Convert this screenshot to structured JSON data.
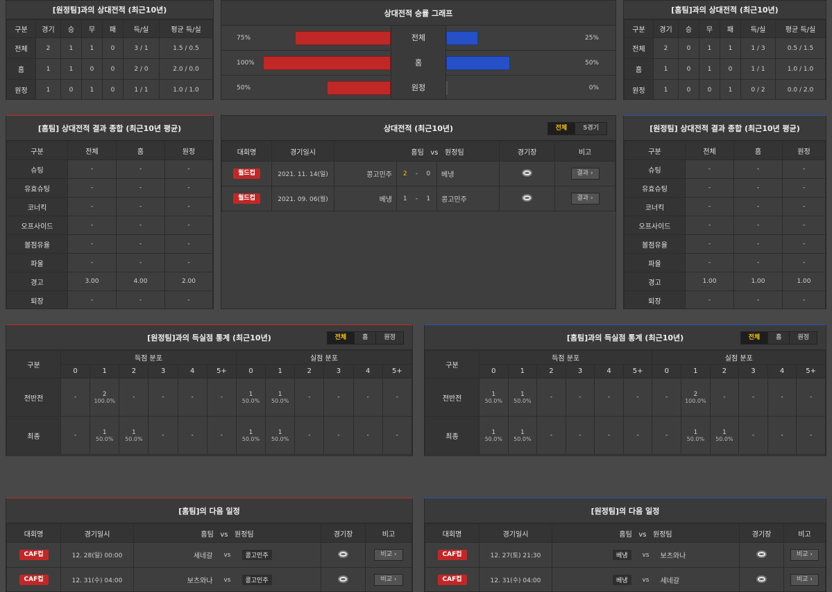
{
  "h2h_away": {
    "title": "[원정팀]과의 상대전적 (최근10년)",
    "headers": [
      "구분",
      "경기",
      "승",
      "무",
      "패",
      "득/실",
      "평균 득/실"
    ],
    "rows": [
      [
        "전체",
        "2",
        "1",
        "1",
        "0",
        "3 / 1",
        "1.5 / 0.5"
      ],
      [
        "홈",
        "1",
        "1",
        "0",
        "0",
        "2 / 0",
        "2.0 / 0.0"
      ],
      [
        "원정",
        "1",
        "0",
        "1",
        "0",
        "1 / 1",
        "1.0 / 1.0"
      ]
    ]
  },
  "h2h_home": {
    "title": "[홈팀]과의 상대전적 (최근10년)",
    "headers": [
      "구분",
      "경기",
      "승",
      "무",
      "패",
      "득/실",
      "평균 득/실"
    ],
    "rows": [
      [
        "전체",
        "2",
        "0",
        "1",
        "1",
        "1 / 3",
        "0.5 / 1.5"
      ],
      [
        "홈",
        "1",
        "0",
        "1",
        "0",
        "1 / 1",
        "1.0 / 1.0"
      ],
      [
        "원정",
        "1",
        "0",
        "0",
        "1",
        "0 / 2",
        "0.0 / 2.0"
      ]
    ]
  },
  "graph": {
    "title": "상대전적 승률 그래프",
    "rows": [
      {
        "label": "전체",
        "left_pct": "75%",
        "right_pct": "25%",
        "left": 75,
        "right": 25
      },
      {
        "label": "홈",
        "left_pct": "100%",
        "right_pct": "50%",
        "left": 100,
        "right": 50
      },
      {
        "label": "원정",
        "left_pct": "50%",
        "right_pct": "0%",
        "left": 50,
        "right": 0
      }
    ]
  },
  "summary_home": {
    "title": "[홈팀] 상대전적 결과 종합 (최근10년 평균)",
    "headers": [
      "구분",
      "전체",
      "홈",
      "원정"
    ],
    "rows": [
      [
        "슈팅",
        "-",
        "-",
        "-"
      ],
      [
        "유효슈팅",
        "-",
        "-",
        "-"
      ],
      [
        "코너킥",
        "-",
        "-",
        "-"
      ],
      [
        "오프사이드",
        "-",
        "-",
        "-"
      ],
      [
        "볼점유율",
        "-",
        "-",
        "-"
      ],
      [
        "파울",
        "-",
        "-",
        "-"
      ],
      [
        "경고",
        "3.00",
        "4.00",
        "2.00"
      ],
      [
        "퇴장",
        "-",
        "-",
        "-"
      ]
    ]
  },
  "summary_away": {
    "title": "[원정팀] 상대전적 결과 종합 (최근10년 평균)",
    "headers": [
      "구분",
      "전체",
      "홈",
      "원정"
    ],
    "rows": [
      [
        "슈팅",
        "-",
        "-",
        "-"
      ],
      [
        "유효슈팅",
        "-",
        "-",
        "-"
      ],
      [
        "코너킥",
        "-",
        "-",
        "-"
      ],
      [
        "오프사이드",
        "-",
        "-",
        "-"
      ],
      [
        "볼점유율",
        "-",
        "-",
        "-"
      ],
      [
        "파울",
        "-",
        "-",
        "-"
      ],
      [
        "경고",
        "1.00",
        "1.00",
        "1.00"
      ],
      [
        "퇴장",
        "-",
        "-",
        "-"
      ]
    ]
  },
  "h2h_list": {
    "title": "상대전적 (최근10년)",
    "tabs": [
      "전체",
      "5경기"
    ],
    "headers": {
      "league": "대회명",
      "date": "경기일시",
      "home": "홈팀",
      "vs": "vs",
      "away": "원정팀",
      "stadium": "경기장",
      "note": "비고"
    },
    "matches": [
      {
        "league": "월드컵",
        "date": "2021. 11. 14(일)",
        "home": "콩고민주",
        "hs": "2",
        "dash": "-",
        "as": "0",
        "away": "베냉",
        "btn": "결과"
      },
      {
        "league": "월드컵",
        "date": "2021. 09. 06(월)",
        "home": "베냉",
        "hs": "1",
        "dash": "-",
        "as": "1",
        "away": "콩고민주",
        "btn": "결과"
      }
    ]
  },
  "goals_away": {
    "title": "[원정팀]과의 득실점 통계 (최근10년)",
    "tabs": [
      "전체",
      "홈",
      "원정"
    ],
    "h_label": "구분",
    "h_scored": "득점 분포",
    "h_conceded": "실점 분포",
    "cols": [
      "0",
      "1",
      "2",
      "3",
      "4",
      "5+"
    ],
    "rows": [
      {
        "label": "전반전",
        "scored": [
          [
            "-",
            ""
          ],
          [
            "2",
            "100.0%"
          ],
          [
            "-",
            ""
          ],
          [
            "-",
            ""
          ],
          [
            "-",
            ""
          ],
          [
            "-",
            ""
          ]
        ],
        "conceded": [
          [
            "1",
            "50.0%"
          ],
          [
            "1",
            "50.0%"
          ],
          [
            "-",
            ""
          ],
          [
            "-",
            ""
          ],
          [
            "-",
            ""
          ],
          [
            "-",
            ""
          ]
        ]
      },
      {
        "label": "최종",
        "scored": [
          [
            "-",
            ""
          ],
          [
            "1",
            "50.0%"
          ],
          [
            "1",
            "50.0%"
          ],
          [
            "-",
            ""
          ],
          [
            "-",
            ""
          ],
          [
            "-",
            ""
          ]
        ],
        "conceded": [
          [
            "1",
            "50.0%"
          ],
          [
            "1",
            "50.0%"
          ],
          [
            "-",
            ""
          ],
          [
            "-",
            ""
          ],
          [
            "-",
            ""
          ],
          [
            "-",
            ""
          ]
        ]
      }
    ]
  },
  "goals_home": {
    "title": "[홈팀]과의 득실점 통계 (최근10년)",
    "tabs": [
      "전체",
      "홈",
      "원정"
    ],
    "h_label": "구분",
    "h_scored": "득점 분포",
    "h_conceded": "실점 분포",
    "cols": [
      "0",
      "1",
      "2",
      "3",
      "4",
      "5+"
    ],
    "rows": [
      {
        "label": "전반전",
        "scored": [
          [
            "1",
            "50.0%"
          ],
          [
            "1",
            "50.0%"
          ],
          [
            "-",
            ""
          ],
          [
            "-",
            ""
          ],
          [
            "-",
            ""
          ],
          [
            "-",
            ""
          ]
        ],
        "conceded": [
          [
            "-",
            ""
          ],
          [
            "2",
            "100.0%"
          ],
          [
            "-",
            ""
          ],
          [
            "-",
            ""
          ],
          [
            "-",
            ""
          ],
          [
            "-",
            ""
          ]
        ]
      },
      {
        "label": "최종",
        "scored": [
          [
            "1",
            "50.0%"
          ],
          [
            "1",
            "50.0%"
          ],
          [
            "-",
            ""
          ],
          [
            "-",
            ""
          ],
          [
            "-",
            ""
          ],
          [
            "-",
            ""
          ]
        ],
        "conceded": [
          [
            "-",
            ""
          ],
          [
            "1",
            "50.0%"
          ],
          [
            "1",
            "50.0%"
          ],
          [
            "-",
            ""
          ],
          [
            "-",
            ""
          ],
          [
            "-",
            ""
          ]
        ]
      }
    ]
  },
  "next_home": {
    "title": "[홈팀]의 다음 일정",
    "headers": {
      "league": "대회명",
      "date": "경기일시",
      "home": "홈팀",
      "vs": "vs",
      "away": "원정팀",
      "stadium": "경기장",
      "note": "비고"
    },
    "matches": [
      {
        "league": "CAF컵",
        "date": "12. 28(일) 00:00",
        "home": "세네갈",
        "vs": "vs",
        "away": "콩고민주",
        "btn": "비교",
        "boxed": "away"
      },
      {
        "league": "CAF컵",
        "date": "12. 31(수) 04:00",
        "home": "보츠와나",
        "vs": "vs",
        "away": "콩고민주",
        "btn": "비교",
        "boxed": "away"
      }
    ]
  },
  "next_away": {
    "title": "[원정팀]의 다음 일정",
    "headers": {
      "league": "대회명",
      "date": "경기일시",
      "home": "홈팀",
      "vs": "vs",
      "away": "원정팀",
      "stadium": "경기장",
      "note": "비고"
    },
    "matches": [
      {
        "league": "CAF컵",
        "date": "12. 27(토) 21:30",
        "home": "베냉",
        "vs": "vs",
        "away": "보츠와나",
        "btn": "비교",
        "boxed": "home"
      },
      {
        "league": "CAF컵",
        "date": "12. 31(수) 04:00",
        "home": "베냉",
        "vs": "vs",
        "away": "세네갈",
        "btn": "비교",
        "boxed": "home"
      }
    ]
  },
  "colors": {
    "win": "#c02828",
    "loss": "#2650c8",
    "accent": "#f5c518"
  },
  "icons": {
    "stadium": "stadium-icon",
    "arrow": "chevron-right-icon"
  }
}
